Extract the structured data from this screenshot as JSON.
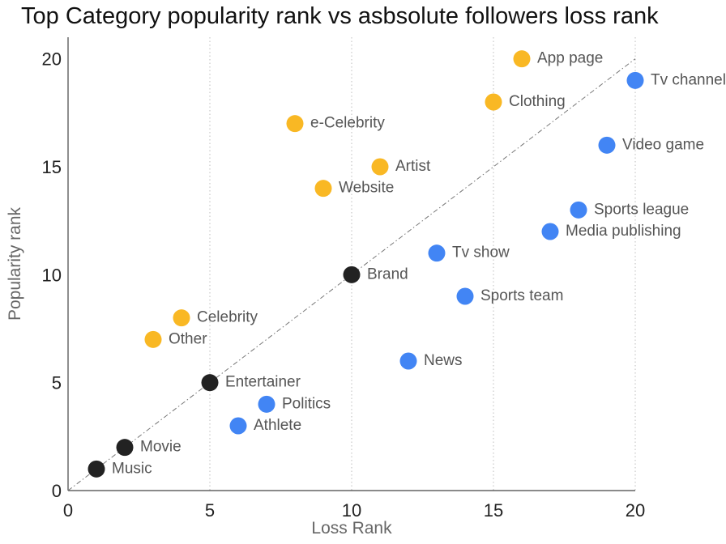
{
  "chart_data": {
    "type": "scatter",
    "title": "Top Category popularity rank vs asbsolute followers loss rank",
    "xlabel": "Loss Rank",
    "ylabel": "Popularity rank",
    "xlim": [
      0,
      20
    ],
    "ylim": [
      0,
      21
    ],
    "xticks": [
      0,
      5,
      10,
      15,
      20
    ],
    "yticks": [
      0,
      5,
      10,
      15,
      20
    ],
    "grid": "vertical dotted",
    "reference_line": "y = x (dash-dot)",
    "colors": {
      "above": "#F9B824",
      "below": "#4285F4",
      "on_line": "#222222"
    },
    "points": [
      {
        "label": "App page",
        "x": 16,
        "y": 20,
        "group": "above"
      },
      {
        "label": "Tv channel",
        "x": 20,
        "y": 19,
        "group": "below"
      },
      {
        "label": "Clothing",
        "x": 15,
        "y": 18,
        "group": "above"
      },
      {
        "label": "e-Celebrity",
        "x": 8,
        "y": 17,
        "group": "above"
      },
      {
        "label": "Video game",
        "x": 19,
        "y": 16,
        "group": "below"
      },
      {
        "label": "Artist",
        "x": 11,
        "y": 15,
        "group": "above"
      },
      {
        "label": "Website",
        "x": 9,
        "y": 14,
        "group": "above"
      },
      {
        "label": "Sports league",
        "x": 18,
        "y": 13,
        "group": "below"
      },
      {
        "label": "Media publishing",
        "x": 17,
        "y": 12,
        "group": "below"
      },
      {
        "label": "Tv show",
        "x": 13,
        "y": 11,
        "group": "below"
      },
      {
        "label": "Brand",
        "x": 10,
        "y": 10,
        "group": "on_line"
      },
      {
        "label": "Sports team",
        "x": 14,
        "y": 9,
        "group": "below"
      },
      {
        "label": "Celebrity",
        "x": 4,
        "y": 8,
        "group": "above"
      },
      {
        "label": "Other",
        "x": 3,
        "y": 7,
        "group": "above"
      },
      {
        "label": "News",
        "x": 12,
        "y": 6,
        "group": "below"
      },
      {
        "label": "Entertainer",
        "x": 5,
        "y": 5,
        "group": "on_line"
      },
      {
        "label": "Politics",
        "x": 7,
        "y": 4,
        "group": "below"
      },
      {
        "label": "Athlete",
        "x": 6,
        "y": 3,
        "group": "below"
      },
      {
        "label": "Movie",
        "x": 2,
        "y": 2,
        "group": "on_line"
      },
      {
        "label": "Music",
        "x": 1,
        "y": 1,
        "group": "on_line"
      }
    ]
  }
}
